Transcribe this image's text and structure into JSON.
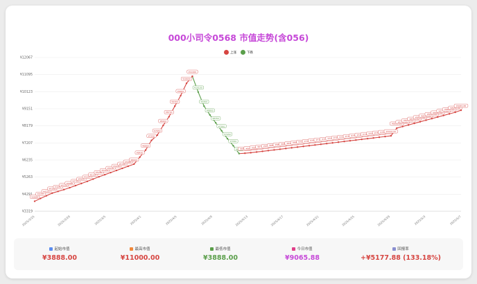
{
  "title": "000小司令0568 市值走势(含056)",
  "legend": {
    "up": "上涨",
    "down": "下跌"
  },
  "colors": {
    "up": "#d64541",
    "down": "#5a9e4a",
    "title": "#c648d8",
    "today": "#c648d8"
  },
  "chart_data": {
    "type": "line",
    "title": "000小司令0568 市值走势(含056)",
    "y_ticks": [
      "¥3319",
      "¥4291",
      "¥5263",
      "¥6235",
      "¥7207",
      "¥8179",
      "¥9151",
      "¥10123",
      "¥11095",
      "¥12067"
    ],
    "ylim": [
      3319,
      12067
    ],
    "x_ticks": [
      "2025/3/25",
      "2025/3/29",
      "2025/3/5",
      "2025/4/1",
      "2025/4/5",
      "2025/4/9",
      "2025/4/13",
      "2025/4/17",
      "2025/4/21",
      "2025/4/25",
      "2025/4/29",
      "2025/5/3",
      "2025/5/7"
    ],
    "series": [
      {
        "values": [
          3888,
          4050,
          4200,
          4350,
          4450,
          4550,
          4660,
          4780,
          4900,
          5020,
          5150,
          5280,
          5400,
          5520,
          5640,
          5760,
          5880,
          6000,
          6400,
          6800,
          7350,
          7650,
          8200,
          8700,
          9300,
          9900,
          10600,
          11000,
          10100,
          9300,
          8800,
          8350,
          7900,
          7450,
          7050,
          6600,
          6620,
          6650,
          6690,
          6730,
          6770,
          6810,
          6850,
          6890,
          6930,
          6970,
          7010,
          7050,
          7090,
          7130,
          7170,
          7210,
          7250,
          7290,
          7330,
          7370,
          7410,
          7450,
          7490,
          7530,
          7570,
          7610,
          8050,
          8140,
          8230,
          8320,
          8410,
          8500,
          8590,
          8680,
          8770,
          8860,
          8950,
          9065.88
        ]
      }
    ],
    "point_labels": [
      "¥3888",
      "¥4050",
      "¥4200",
      "¥4350",
      "¥4450",
      "¥4550",
      "¥4660",
      "¥4780",
      "¥4900",
      "¥5020",
      "¥5150",
      "¥5280",
      "¥5400",
      "¥5520",
      "¥5640",
      "¥5760",
      "¥5880",
      "¥6000",
      "¥6400",
      "¥6800",
      "¥7350",
      "¥7650",
      "¥8200",
      "¥8700",
      "¥9300",
      "¥9900",
      "¥10600",
      "¥11000",
      "¥10100",
      "¥9300",
      "¥8800",
      "¥8350",
      "¥7900",
      "¥7450",
      "¥7050",
      "¥6600",
      "¥6620.00",
      "¥6650.00",
      "¥6690.00",
      "¥6730.00",
      "¥6770.00",
      "¥6810.00",
      "¥6850.00",
      "¥6890.00",
      "¥6930.00",
      "¥6970.00",
      "¥7010.00",
      "¥7050.00",
      "¥7090.00",
      "¥7130.00",
      "¥7170.00",
      "¥7210.00",
      "¥7250.00",
      "¥7290.00",
      "¥7330.00",
      "¥7370.00",
      "¥7410.00",
      "¥7450.00",
      "¥7490.00",
      "¥7530.00",
      "¥7570.00",
      "¥7610.00",
      "¥8050.00",
      "¥8140.00",
      "¥8230.00",
      "¥8320.00",
      "¥8410.00",
      "¥8500.00",
      "¥8590.00",
      "¥8680.00",
      "¥8770.00",
      "¥8860.00",
      "¥8950.00",
      "¥9065.88"
    ]
  },
  "stats": [
    {
      "label": "起始市值",
      "value": "¥3888.00",
      "color": "#d64541",
      "icon_color": "#5b8def"
    },
    {
      "label": "最高市值",
      "value": "¥11000.00",
      "color": "#d64541",
      "icon_color": "#f0883a"
    },
    {
      "label": "最低市值",
      "value": "¥3888.00",
      "color": "#5a9e4a",
      "icon_color": "#5a9e4a"
    },
    {
      "label": "今日市值",
      "value": "¥9065.88",
      "color": "#c648d8",
      "icon_color": "#e0408a"
    },
    {
      "label": "回报率",
      "value": "+¥5177.88 (133.18%)",
      "color": "#d64541",
      "icon_color": "#8a8fd0"
    }
  ]
}
